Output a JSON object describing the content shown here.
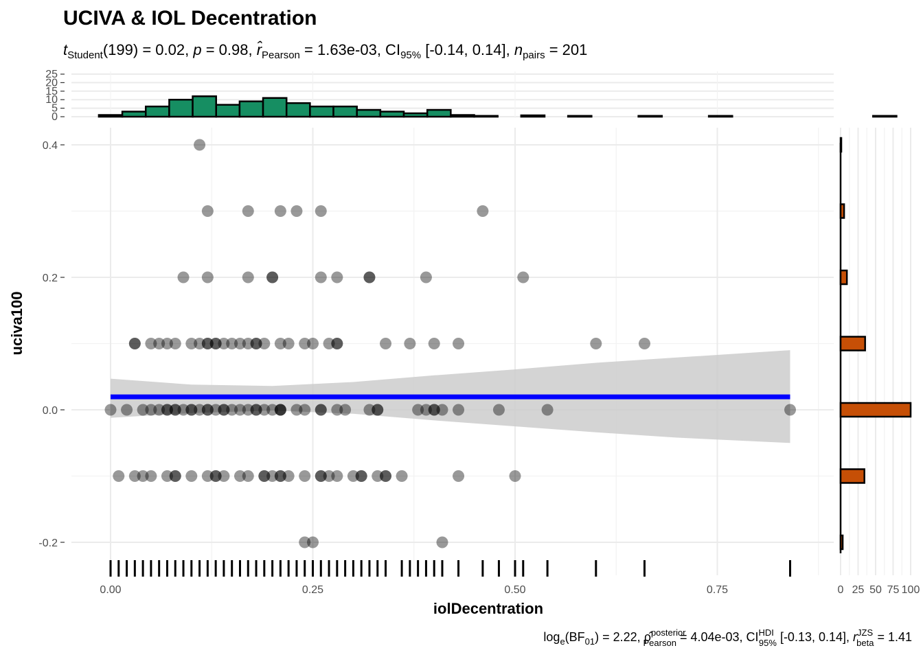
{
  "chart_data": {
    "type": "scatter",
    "title": "UCIVA & IOL Decentration",
    "subtitle": {
      "t": "t",
      "t_sub": "Student",
      "stat": "(199) = 0.02, ",
      "p": "p",
      "p_val": " = 0.98, ",
      "r": "r̂",
      "r_sub": "Pearson",
      "r_val": " = 1.63e-03, CI",
      "ci_sub": "95%",
      "ci_val": " [-0.14, 0.14], ",
      "n": "n",
      "n_sub": "pairs",
      "n_val": " = 201"
    },
    "caption": {
      "log": "log",
      "log_sub": "e",
      "bf_open": "(BF",
      "bf_sub": "01",
      "bf_val": ") = 2.22, ",
      "rho": "ρ̂",
      "rho_sup": "posterior",
      "rho_sub": "Pearson",
      "rho_val": " = 4.04e-03, CI",
      "ci_sup": "HDI",
      "ci_sub": "95%",
      "ci_val": " [-0.13, 0.14], ",
      "r": "r",
      "r_sup": "JZS",
      "r_sub": "beta",
      "r_val": " = 1.41"
    },
    "xlabel": "iolDecentration",
    "ylabel": "uciva100",
    "xlim": [
      -0.02,
      0.88
    ],
    "ylim": [
      -0.23,
      0.42
    ],
    "x_ticks": [
      0.0,
      0.25,
      0.5,
      0.75
    ],
    "x_tick_labels": [
      "0.00",
      "0.25",
      "0.50",
      "0.75"
    ],
    "y_ticks": [
      -0.2,
      0.0,
      0.2,
      0.4
    ],
    "y_tick_labels": [
      "-0.2",
      "0.0",
      "0.2",
      "0.4"
    ],
    "points": [
      {
        "y": 0.4,
        "x": [
          0.11
        ]
      },
      {
        "y": 0.3,
        "x": [
          0.12,
          0.17,
          0.21,
          0.23,
          0.26,
          0.46
        ]
      },
      {
        "y": 0.2,
        "x": [
          0.09,
          0.12,
          0.17,
          0.2,
          0.2,
          0.26,
          0.28,
          0.32,
          0.32,
          0.39,
          0.51
        ]
      },
      {
        "y": 0.1,
        "x": [
          0.03,
          0.03,
          0.05,
          0.06,
          0.07,
          0.08,
          0.1,
          0.11,
          0.12,
          0.12,
          0.13,
          0.13,
          0.14,
          0.15,
          0.16,
          0.17,
          0.18,
          0.18,
          0.19,
          0.21,
          0.22,
          0.24,
          0.25,
          0.27,
          0.28,
          0.28,
          0.34,
          0.37,
          0.4,
          0.43,
          0.6,
          0.66
        ]
      },
      {
        "y": 0.0,
        "x": [
          0.0,
          0.02,
          0.04,
          0.05,
          0.06,
          0.07,
          0.07,
          0.08,
          0.08,
          0.09,
          0.1,
          0.1,
          0.11,
          0.12,
          0.12,
          0.13,
          0.14,
          0.14,
          0.15,
          0.16,
          0.17,
          0.18,
          0.18,
          0.19,
          0.2,
          0.21,
          0.21,
          0.21,
          0.23,
          0.24,
          0.26,
          0.26,
          0.28,
          0.29,
          0.32,
          0.33,
          0.33,
          0.38,
          0.39,
          0.4,
          0.4,
          0.41,
          0.43,
          0.48,
          0.54,
          0.84
        ]
      },
      {
        "y": -0.1,
        "x": [
          0.01,
          0.03,
          0.04,
          0.05,
          0.07,
          0.08,
          0.08,
          0.1,
          0.12,
          0.13,
          0.13,
          0.14,
          0.16,
          0.17,
          0.19,
          0.19,
          0.2,
          0.21,
          0.21,
          0.22,
          0.24,
          0.26,
          0.26,
          0.27,
          0.28,
          0.3,
          0.31,
          0.31,
          0.33,
          0.34,
          0.34,
          0.36,
          0.43,
          0.5
        ]
      },
      {
        "y": -0.2,
        "x": [
          0.24,
          0.25,
          0.41
        ]
      }
    ],
    "regression": {
      "intercept": 0.0195,
      "slope": 0.0
    },
    "ci_band": {
      "x": [
        0.0,
        0.1,
        0.2,
        0.3,
        0.4,
        0.5,
        0.6,
        0.7,
        0.84
      ],
      "lower": [
        -0.012,
        -0.005,
        -0.001,
        -0.006,
        -0.016,
        -0.025,
        -0.034,
        -0.042,
        -0.05
      ],
      "upper": [
        0.047,
        0.038,
        0.036,
        0.042,
        0.052,
        0.061,
        0.071,
        0.079,
        0.09
      ]
    },
    "rug_x": [
      0.0,
      0.01,
      0.02,
      0.03,
      0.04,
      0.05,
      0.06,
      0.07,
      0.08,
      0.09,
      0.1,
      0.11,
      0.12,
      0.13,
      0.14,
      0.15,
      0.16,
      0.17,
      0.18,
      0.19,
      0.2,
      0.21,
      0.22,
      0.23,
      0.24,
      0.25,
      0.26,
      0.27,
      0.28,
      0.29,
      0.3,
      0.31,
      0.32,
      0.33,
      0.34,
      0.36,
      0.37,
      0.38,
      0.39,
      0.4,
      0.41,
      0.43,
      0.46,
      0.48,
      0.5,
      0.51,
      0.54,
      0.6,
      0.66,
      0.84
    ],
    "top_histogram": {
      "color": "#168E62",
      "bin_width": 0.029,
      "bin_start": -0.0145,
      "counts": [
        1,
        3,
        6,
        10,
        12,
        7,
        9,
        11,
        8,
        6,
        6,
        4,
        3,
        2,
        4,
        1,
        0.5,
        0,
        0.8,
        0,
        0.5,
        0,
        0,
        0.5,
        0,
        0,
        0.5,
        0,
        0,
        0,
        0,
        0,
        0,
        0.5,
        0
      ],
      "y_ticks": [
        0,
        5,
        10,
        15,
        20,
        25
      ],
      "y_tick_labels": [
        "0",
        "5",
        "10",
        "15",
        "20",
        "25"
      ],
      "ylim": [
        0,
        25
      ]
    },
    "right_histogram": {
      "color": "#C64F06",
      "bars": [
        {
          "y": -0.2,
          "count": 3
        },
        {
          "y": -0.1,
          "count": 34
        },
        {
          "y": 0.0,
          "count": 100
        },
        {
          "y": 0.1,
          "count": 35
        },
        {
          "y": 0.2,
          "count": 9
        },
        {
          "y": 0.3,
          "count": 5
        },
        {
          "y": 0.4,
          "count": 1
        }
      ],
      "x_ticks": [
        0,
        25,
        50,
        75,
        100
      ],
      "x_tick_labels": [
        "0",
        "25",
        "50",
        "75",
        "100"
      ],
      "xlim": [
        0,
        100
      ]
    },
    "colors": {
      "point": "#000000",
      "point_alpha": 0.4,
      "line": "#0000FF",
      "band": "#CCCCCC",
      "grid": "#EBEBEB"
    }
  }
}
